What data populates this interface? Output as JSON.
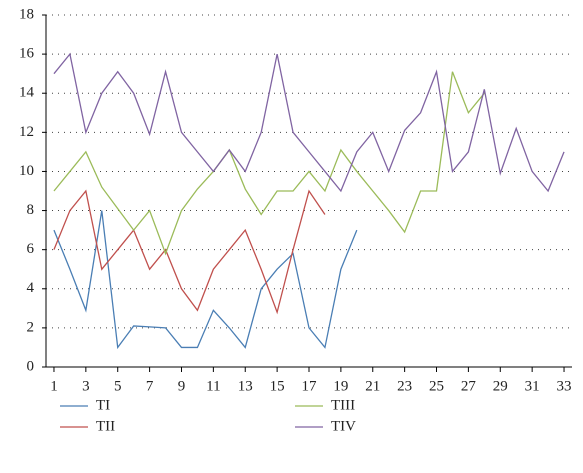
{
  "chart_data": {
    "type": "line",
    "x": [
      1,
      2,
      3,
      4,
      5,
      6,
      7,
      8,
      9,
      10,
      11,
      12,
      13,
      14,
      15,
      16,
      17,
      18,
      19,
      20,
      21,
      22,
      23,
      24,
      25,
      26,
      27,
      28,
      29,
      30,
      31,
      32,
      33
    ],
    "xlim": [
      0.5,
      33.5
    ],
    "xticks": [
      1,
      3,
      5,
      7,
      9,
      11,
      13,
      15,
      17,
      19,
      21,
      23,
      25,
      27,
      29,
      31,
      33
    ],
    "ylim": [
      0,
      18
    ],
    "yticks": [
      0,
      2,
      4,
      6,
      8,
      10,
      12,
      14,
      16,
      18
    ],
    "grid": true,
    "legend": "bottom",
    "series": [
      {
        "name": "TI",
        "color": "#4a7eb4",
        "values": [
          7,
          5,
          2.9,
          8,
          1,
          2.1,
          2.05,
          2,
          1,
          1,
          2.9,
          2,
          1,
          4,
          5,
          5.8,
          2,
          1,
          5,
          7,
          null,
          null,
          null,
          null,
          null,
          null,
          null,
          null,
          null,
          null,
          null,
          null,
          null
        ]
      },
      {
        "name": "TII",
        "color": "#c0504d",
        "values": [
          6,
          8,
          9,
          5,
          6,
          7,
          5,
          6,
          4,
          2.9,
          5,
          6,
          7,
          5,
          2.8,
          6,
          9,
          7.8,
          null,
          null,
          null,
          null,
          null,
          null,
          null,
          null,
          null,
          null,
          null,
          null,
          null,
          null,
          null
        ]
      },
      {
        "name": "TIII",
        "color": "#9bbb59",
        "values": [
          9,
          10,
          11,
          9.2,
          8.1,
          7,
          8,
          5.8,
          8,
          9.1,
          10,
          11.1,
          9.1,
          7.8,
          9,
          9,
          10,
          9,
          11.1,
          10,
          9,
          8,
          6.9,
          9,
          9,
          15.1,
          13,
          14,
          null,
          null,
          null,
          null,
          null
        ]
      },
      {
        "name": "TIV",
        "color": "#8064a2",
        "values": [
          15,
          16,
          12,
          14,
          15.1,
          14,
          11.9,
          15.1,
          12,
          11,
          10,
          11.1,
          10,
          12,
          16,
          12,
          11,
          10,
          9,
          11,
          12,
          10,
          12.1,
          13,
          15.1,
          10,
          11,
          14.2,
          9.9,
          12.2,
          10,
          9,
          11
        ]
      }
    ]
  }
}
